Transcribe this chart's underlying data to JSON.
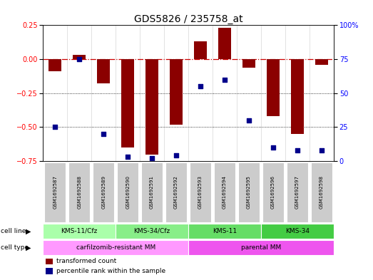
{
  "title": "GDS5826 / 235758_at",
  "samples": [
    "GSM1692587",
    "GSM1692588",
    "GSM1692589",
    "GSM1692590",
    "GSM1692591",
    "GSM1692592",
    "GSM1692593",
    "GSM1692594",
    "GSM1692595",
    "GSM1692596",
    "GSM1692597",
    "GSM1692598"
  ],
  "transformed_count": [
    -0.09,
    0.03,
    -0.18,
    -0.65,
    -0.7,
    -0.48,
    0.13,
    0.23,
    -0.06,
    -0.42,
    -0.55,
    -0.04
  ],
  "percentile_rank": [
    25,
    75,
    20,
    3,
    2,
    4,
    55,
    60,
    30,
    10,
    8,
    8
  ],
  "ylim_left": [
    -0.75,
    0.25
  ],
  "ylim_right": [
    0,
    100
  ],
  "yticks_left": [
    -0.75,
    -0.5,
    -0.25,
    0,
    0.25
  ],
  "yticks_right": [
    0,
    25,
    50,
    75,
    100
  ],
  "bar_color": "#8B0000",
  "dot_color": "#00008B",
  "zero_line_color": "#CC0000",
  "grid_color": "#000000",
  "cell_lines": [
    {
      "label": "KMS-11/Cfz",
      "start": 0,
      "end": 3,
      "color": "#AAFFAA"
    },
    {
      "label": "KMS-34/Cfz",
      "start": 3,
      "end": 6,
      "color": "#88EE88"
    },
    {
      "label": "KMS-11",
      "start": 6,
      "end": 9,
      "color": "#66DD66"
    },
    {
      "label": "KMS-34",
      "start": 9,
      "end": 12,
      "color": "#44CC44"
    }
  ],
  "cell_types": [
    {
      "label": "carfilzomib-resistant MM",
      "start": 0,
      "end": 6,
      "color": "#FF99FF"
    },
    {
      "label": "parental MM",
      "start": 6,
      "end": 12,
      "color": "#EE55EE"
    }
  ],
  "legend_red_label": "transformed count",
  "legend_blue_label": "percentile rank within the sample",
  "sample_box_color": "#CCCCCC",
  "title_fontsize": 10,
  "tick_fontsize": 7,
  "label_fontsize": 7
}
